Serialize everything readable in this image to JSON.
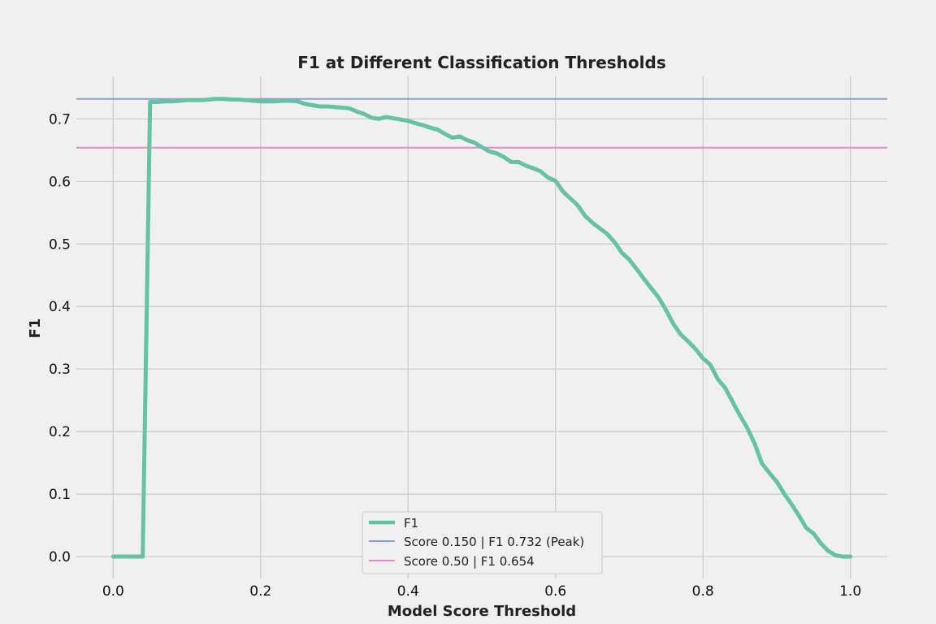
{
  "chart_data": {
    "type": "line",
    "title": "F1 at Different Classification Thresholds",
    "xlabel": "Model Score Threshold",
    "ylabel": "F1",
    "xlim": [
      -0.05,
      1.05
    ],
    "ylim": [
      -0.035,
      0.768
    ],
    "x_ticks": [
      0.0,
      0.2,
      0.4,
      0.6,
      0.8,
      1.0
    ],
    "x_tick_labels": [
      "0.0",
      "0.2",
      "0.4",
      "0.6",
      "0.8",
      "1.0"
    ],
    "y_ticks": [
      0.0,
      0.1,
      0.2,
      0.3,
      0.4,
      0.5,
      0.6,
      0.7
    ],
    "y_tick_labels": [
      "0.0",
      "0.1",
      "0.2",
      "0.3",
      "0.4",
      "0.5",
      "0.6",
      "0.7"
    ],
    "grid": true,
    "legend_position": "bottom-center",
    "series": [
      {
        "name": "F1",
        "color": "#66c2a5",
        "x": [
          0.0,
          0.01,
          0.02,
          0.03,
          0.04,
          0.05,
          0.06,
          0.07,
          0.08,
          0.09,
          0.1,
          0.11,
          0.12,
          0.13,
          0.14,
          0.15,
          0.16,
          0.17,
          0.18,
          0.19,
          0.2,
          0.21,
          0.22,
          0.23,
          0.24,
          0.25,
          0.26,
          0.27,
          0.28,
          0.29,
          0.3,
          0.31,
          0.32,
          0.33,
          0.34,
          0.35,
          0.36,
          0.37,
          0.38,
          0.39,
          0.4,
          0.41,
          0.42,
          0.43,
          0.44,
          0.45,
          0.46,
          0.47,
          0.48,
          0.49,
          0.5,
          0.51,
          0.52,
          0.53,
          0.54,
          0.55,
          0.56,
          0.57,
          0.58,
          0.59,
          0.6,
          0.61,
          0.62,
          0.63,
          0.64,
          0.65,
          0.66,
          0.67,
          0.68,
          0.69,
          0.7,
          0.71,
          0.72,
          0.73,
          0.74,
          0.75,
          0.76,
          0.77,
          0.78,
          0.79,
          0.8,
          0.81,
          0.82,
          0.83,
          0.84,
          0.85,
          0.86,
          0.87,
          0.88,
          0.89,
          0.9,
          0.91,
          0.92,
          0.93,
          0.94,
          0.95,
          0.96,
          0.97,
          0.98,
          0.99,
          1.0
        ],
        "y": [
          0.0,
          0.0,
          0.0,
          0.0,
          0.0,
          0.727,
          0.727,
          0.728,
          0.728,
          0.729,
          0.73,
          0.73,
          0.73,
          0.731,
          0.732,
          0.732,
          0.731,
          0.731,
          0.73,
          0.729,
          0.728,
          0.728,
          0.728,
          0.729,
          0.729,
          0.728,
          0.724,
          0.722,
          0.72,
          0.72,
          0.719,
          0.718,
          0.717,
          0.712,
          0.708,
          0.702,
          0.7,
          0.703,
          0.701,
          0.699,
          0.697,
          0.693,
          0.69,
          0.686,
          0.683,
          0.676,
          0.67,
          0.672,
          0.666,
          0.662,
          0.655,
          0.648,
          0.645,
          0.639,
          0.631,
          0.631,
          0.625,
          0.621,
          0.616,
          0.606,
          0.601,
          0.584,
          0.573,
          0.562,
          0.545,
          0.534,
          0.525,
          0.516,
          0.503,
          0.486,
          0.475,
          0.46,
          0.444,
          0.429,
          0.414,
          0.394,
          0.372,
          0.355,
          0.344,
          0.332,
          0.317,
          0.307,
          0.284,
          0.27,
          0.248,
          0.226,
          0.206,
          0.181,
          0.149,
          0.134,
          0.12,
          0.101,
          0.084,
          0.066,
          0.046,
          0.037,
          0.021,
          0.009,
          0.002,
          0.0,
          0.0
        ]
      },
      {
        "name": "Score 0.150 | F1 0.732 (Peak)",
        "color": "#8da0cb",
        "type": "hline",
        "y": 0.732
      },
      {
        "name": "Score 0.50 | F1 0.654",
        "color": "#e78ac3",
        "type": "hline",
        "y": 0.654
      }
    ]
  }
}
